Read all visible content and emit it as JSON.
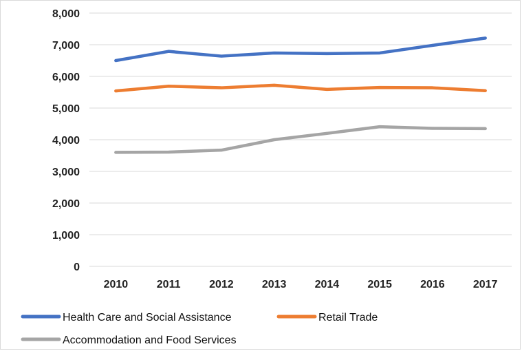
{
  "chart_data": {
    "type": "line",
    "title": "",
    "xlabel": "",
    "ylabel": "",
    "ylim": [
      0,
      8000
    ],
    "y_ticks": [
      "0",
      "1,000",
      "2,000",
      "3,000",
      "4,000",
      "5,000",
      "6,000",
      "7,000",
      "8,000"
    ],
    "categories": [
      "2010",
      "2011",
      "2012",
      "2013",
      "2014",
      "2015",
      "2016",
      "2017"
    ],
    "grid": "horizontal",
    "legend_position": "bottom",
    "series": [
      {
        "name": "Health Care and Social Assistance",
        "color": "#4472c4",
        "values": [
          6500,
          6790,
          6640,
          6740,
          6720,
          6740,
          6980,
          7210
        ]
      },
      {
        "name": "Retail Trade",
        "color": "#ed7d31",
        "values": [
          5540,
          5690,
          5640,
          5720,
          5590,
          5650,
          5640,
          5550
        ]
      },
      {
        "name": "Accommodation and Food Services",
        "color": "#a5a5a5",
        "values": [
          3600,
          3610,
          3670,
          4000,
          4200,
          4410,
          4360,
          4350
        ]
      }
    ]
  }
}
